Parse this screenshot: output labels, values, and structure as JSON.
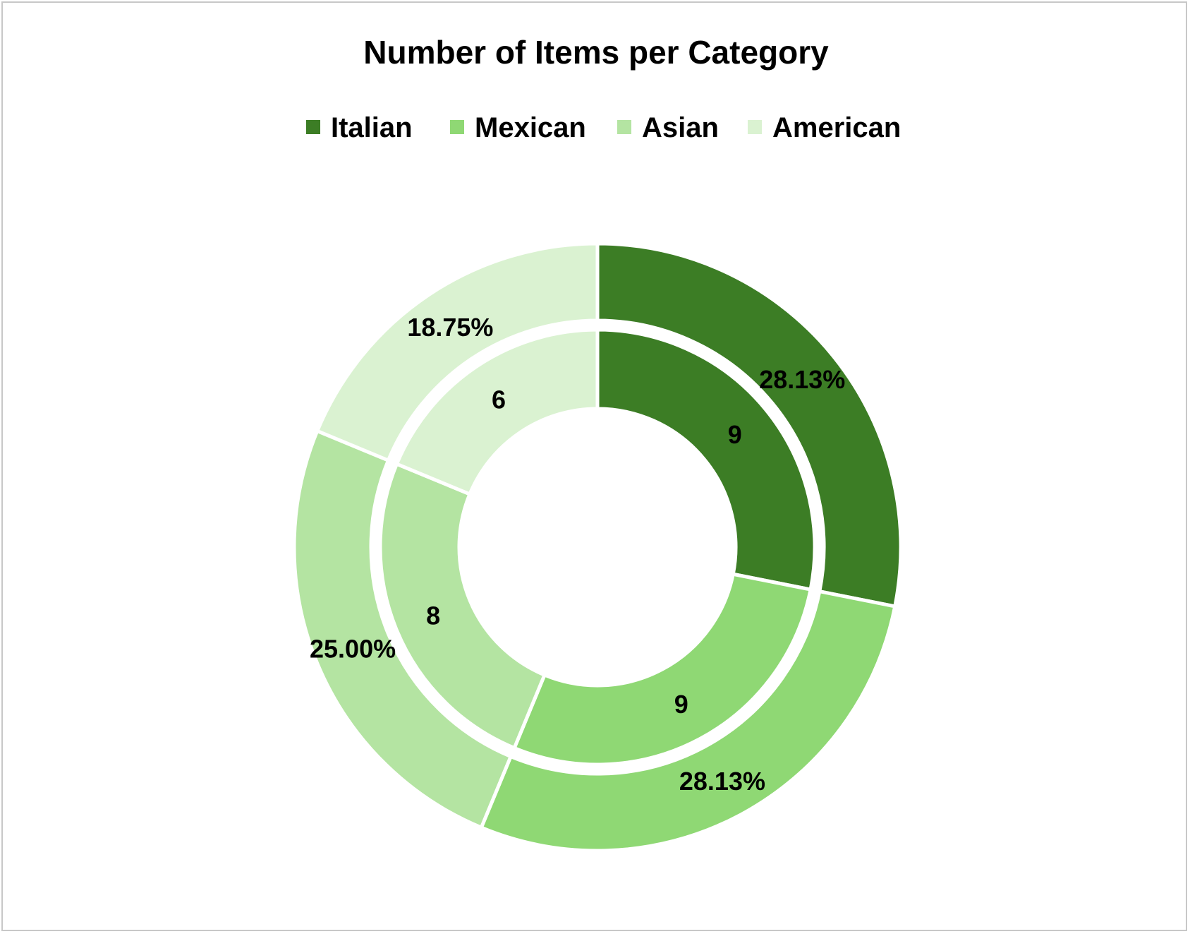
{
  "chart_data": {
    "type": "doughnut",
    "title": "Number of Items per Category",
    "categories": [
      "Italian",
      "Mexican",
      "Asian",
      "American"
    ],
    "colors": [
      "#3c7d25",
      "#8fd874",
      "#b4e4a2",
      "#daf2d1"
    ],
    "legend_position": "top",
    "series": [
      {
        "ring": "outer",
        "values": [
          28.13,
          28.13,
          25.0,
          18.75
        ],
        "labels": [
          "28.13%",
          "28.13%",
          "25.00%",
          "18.75%"
        ]
      },
      {
        "ring": "inner",
        "values": [
          9,
          9,
          8,
          6
        ],
        "labels": [
          "9",
          "9",
          "8",
          "6"
        ]
      }
    ]
  }
}
